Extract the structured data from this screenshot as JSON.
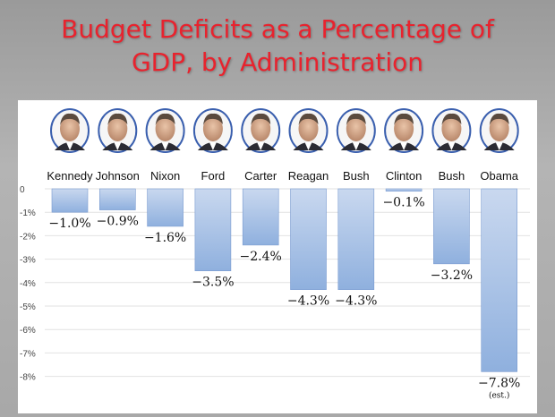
{
  "title_lines": [
    "Budget Deficits as a Percentage of",
    "GDP, by Administration"
  ],
  "chart_data": {
    "type": "bar",
    "title": "Budget Deficits as a Percentage of GDP, by Administration",
    "categories": [
      "Kennedy",
      "Johnson",
      "Nixon",
      "Ford",
      "Carter",
      "Reagan",
      "Bush",
      "Clinton",
      "Bush",
      "Obama"
    ],
    "values": [
      -1.0,
      -0.9,
      -1.6,
      -3.5,
      -2.4,
      -4.3,
      -4.3,
      -0.1,
      -3.2,
      -7.8
    ],
    "value_labels": [
      "−1.0%",
      "−0.9%",
      "−1.6%",
      "−3.5%",
      "−2.4%",
      "−4.3%",
      "−4.3%",
      "−0.1%",
      "−3.2%",
      "−7.8%"
    ],
    "annotations": [
      "",
      "",
      "",
      "",
      "",
      "",
      "",
      "",
      "",
      "(est.)"
    ],
    "y_ticks": [
      0,
      -1,
      -2,
      -3,
      -4,
      -5,
      -6,
      -7,
      -8
    ],
    "y_tick_labels": [
      "0",
      "-1%",
      "-2%",
      "-3%",
      "-4%",
      "-5%",
      "-6%",
      "-7%",
      "-8%"
    ],
    "ylim": [
      -8.5,
      0
    ],
    "xlabel": "",
    "ylabel": "",
    "grid": true,
    "colors": {
      "bar_top": "#c9d8ef",
      "bar_bottom": "#8fb0de",
      "bar_edge": "#7a9bd0",
      "portrait_ring": "#3a5fae"
    }
  }
}
